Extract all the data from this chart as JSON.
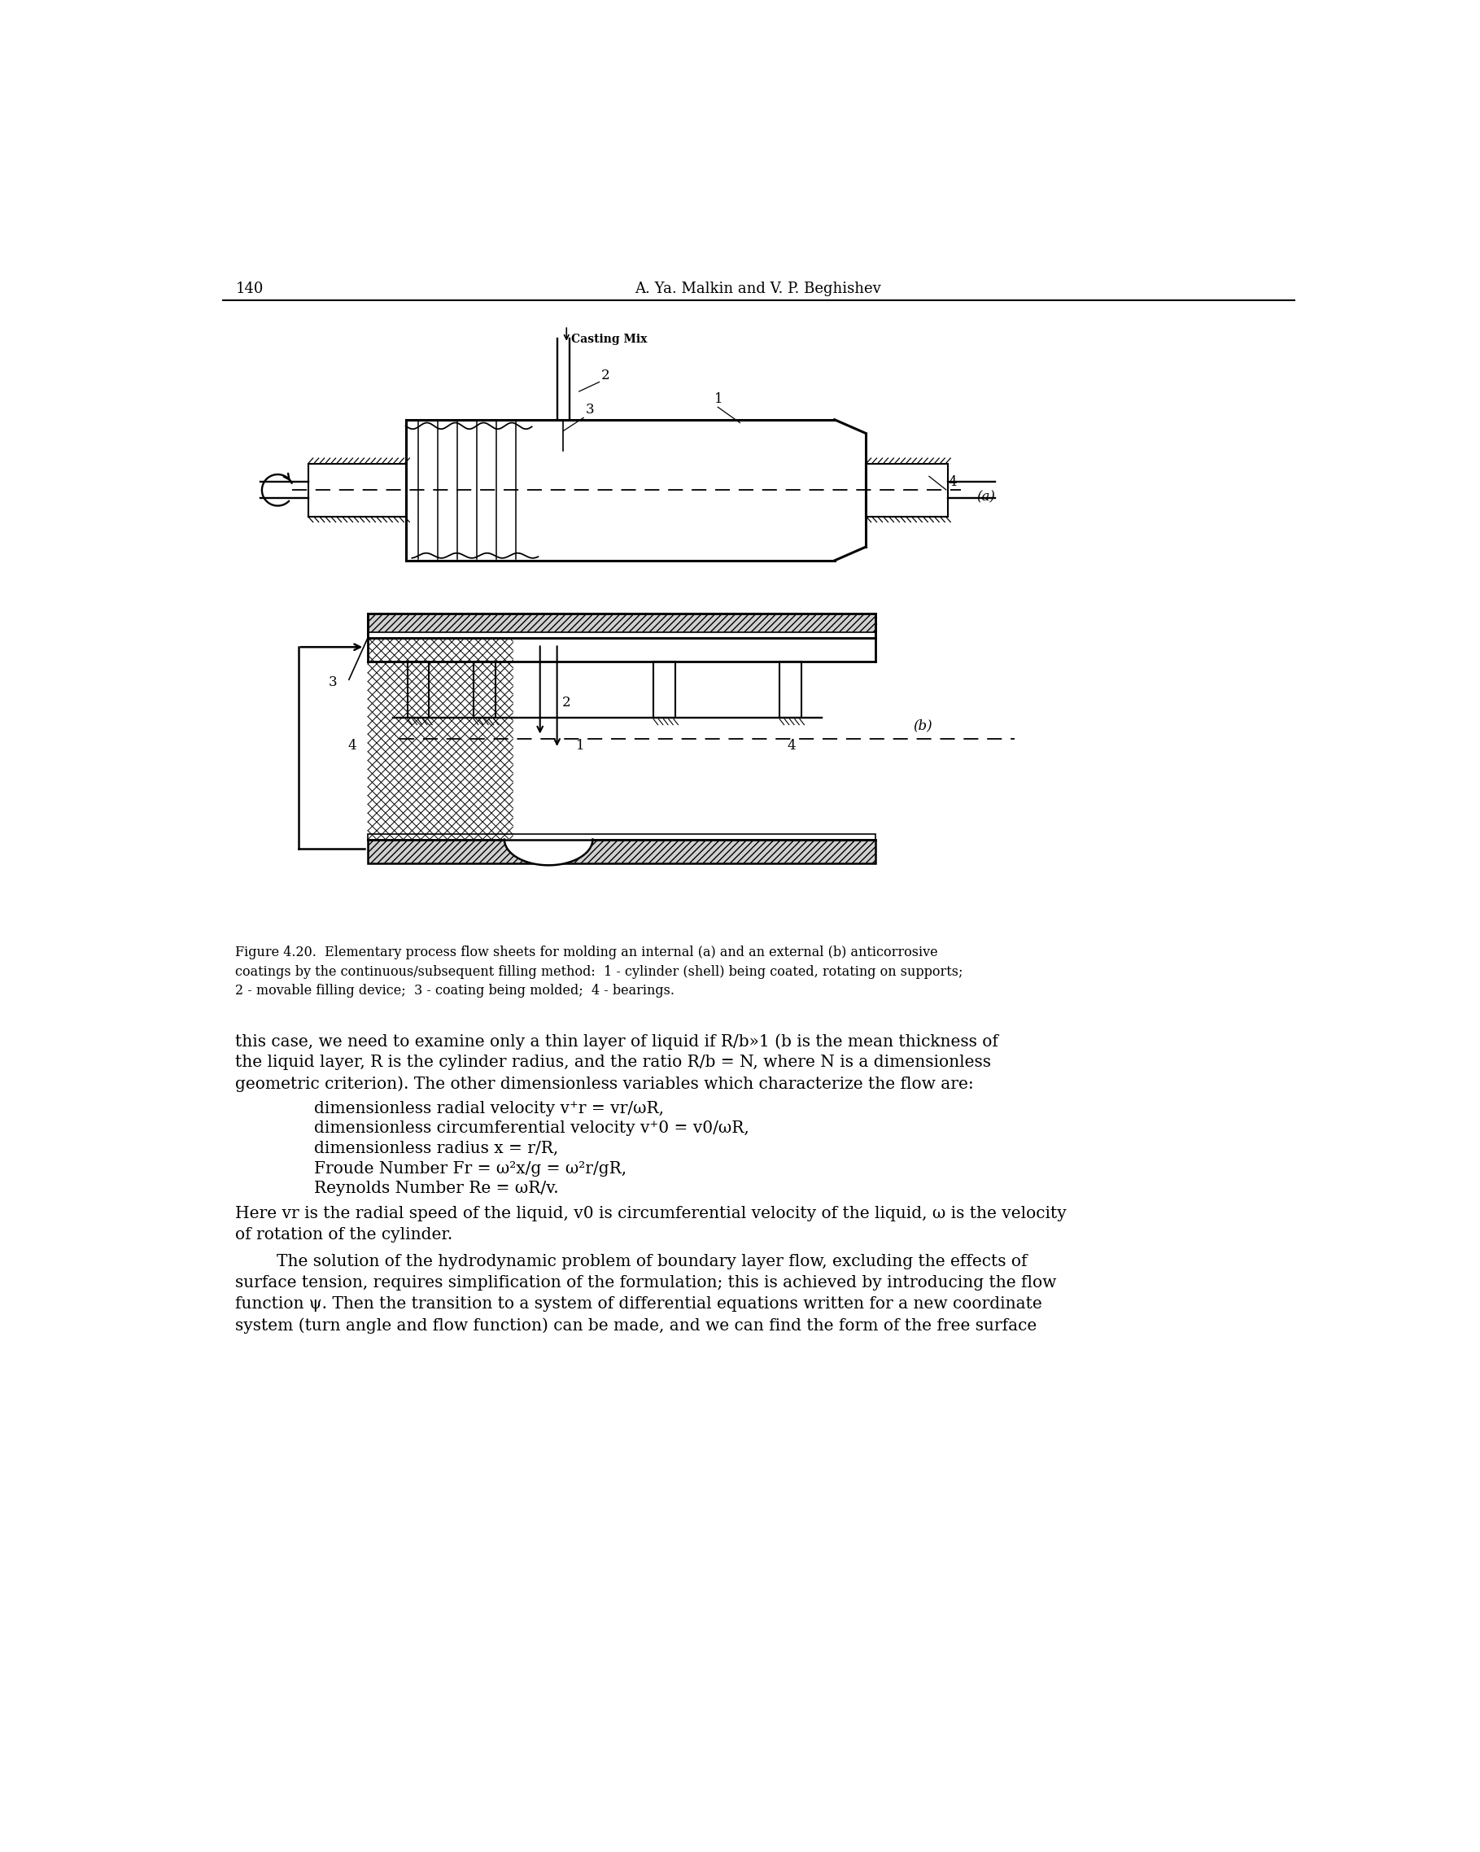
{
  "page_number": "140",
  "header_title": "A. Ya. Malkin and V. P. Beghishev",
  "bg_color": "#ffffff",
  "text_color": "#000000",
  "font_size_header": 13,
  "font_size_body": 14.5,
  "font_size_caption": 11.5,
  "font_size_label": 12,
  "caption_lines": [
    "Figure 4.20.  Elementary process flow sheets for molding an internal (a) and an external (b) anticorrosive",
    "coatings by the continuous/subsequent filling method:  1 - cylinder (shell) being coated, rotating on supports;",
    "2 - movable filling device;  3 - coating being molded;  4 - bearings."
  ],
  "body_text_1": [
    "this case, we need to examine only a thin layer of liquid if R/b»1 (b is the mean thickness of",
    "the liquid layer, R is the cylinder radius, and the ratio R/b = N, where N is a dimensionless",
    "geometric criterion). The other dimensionless variables which characterize the flow are:"
  ],
  "list_items": [
    "dimensionless radial velocity v⁺r = vr/ωR,",
    "dimensionless circumferential velocity v⁺0 = v0/ωR,",
    "dimensionless radius x = r/R,",
    "Froude Number Fr = ω²x/g = ω²r/gR,",
    "Reynolds Number Re = ωR/v."
  ],
  "body_text_2": [
    "Here vr is the radial speed of the liquid, v0 is circumferential velocity of the liquid, ω is the velocity",
    "of rotation of the cylinder."
  ],
  "body_text_3": [
    "        The solution of the hydrodynamic problem of boundary layer flow, excluding the effects of",
    "surface tension, requires simplification of the formulation; this is achieved by introducing the flow",
    "function ψ. Then the transition to a system of differential equations written for a new coordinate",
    "system (turn angle and flow function) can be made, and we can find the form of the free surface"
  ]
}
